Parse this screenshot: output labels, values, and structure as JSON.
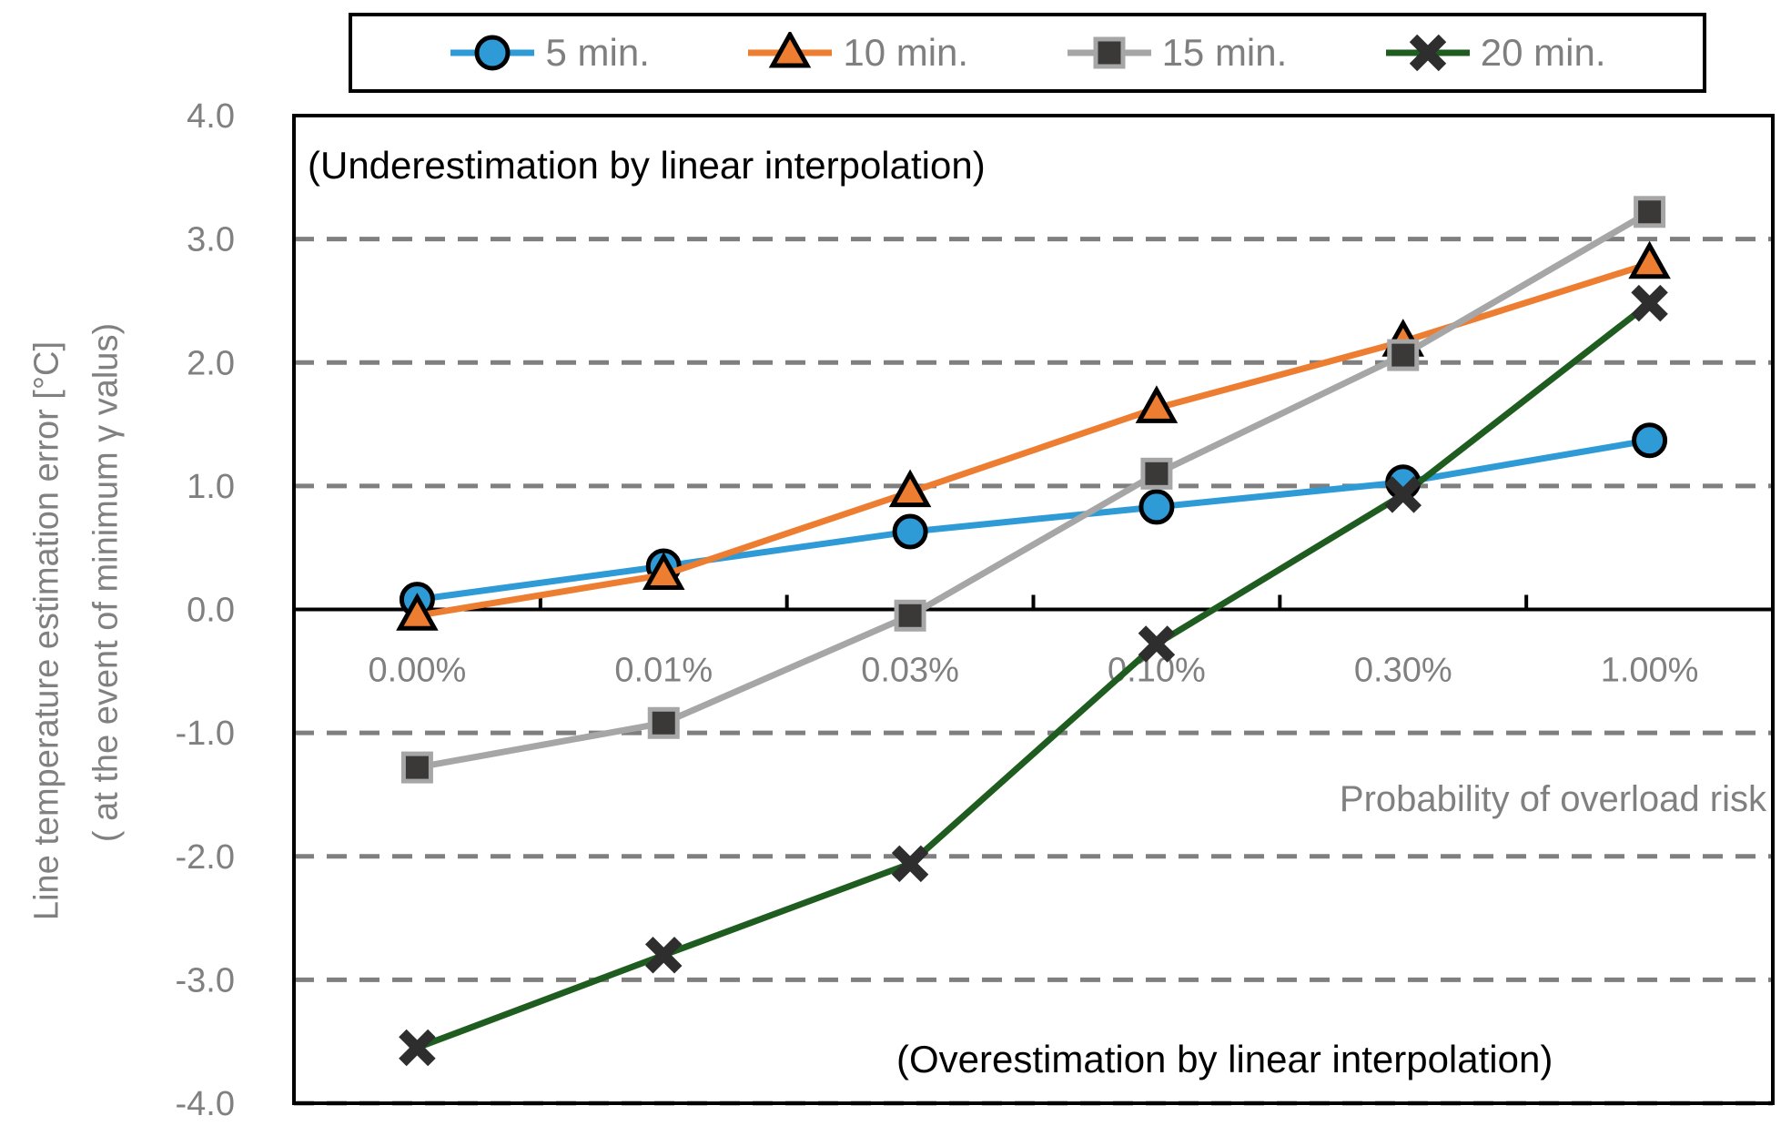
{
  "chart_data": {
    "type": "line",
    "title": "",
    "categories": [
      "0.00%",
      "0.01%",
      "0.03%",
      "0.10%",
      "0.30%",
      "1.00%"
    ],
    "series": [
      {
        "name": "5 min.",
        "marker": "circle",
        "color": "#2E9BD6",
        "marker_fill": "#2E9BD6",
        "marker_stroke": "#000000",
        "values": [
          0.08,
          0.35,
          0.63,
          0.83,
          1.03,
          1.37
        ]
      },
      {
        "name": "10 min.",
        "marker": "triangle",
        "color": "#ED7D31",
        "marker_fill": "#ED7D31",
        "marker_stroke": "#000000",
        "values": [
          -0.05,
          0.28,
          0.95,
          1.63,
          2.17,
          2.8
        ]
      },
      {
        "name": "15 min.",
        "marker": "square",
        "color": "#A6A6A6",
        "marker_fill": "#3B3838",
        "marker_stroke": "#A6A6A6",
        "values": [
          -1.28,
          -0.92,
          -0.05,
          1.1,
          2.06,
          3.22
        ]
      },
      {
        "name": "20 min.",
        "marker": "x",
        "color": "#1F5C1F",
        "marker_fill": "#2E2E2E",
        "marker_stroke": "#2E2E2E",
        "values": [
          -3.55,
          -2.8,
          -2.06,
          -0.28,
          0.93,
          2.48
        ]
      }
    ],
    "xlabel": "Probability of overload risk",
    "ylabel_line1": "Line temperature estimation error  [°C]",
    "ylabel_line2": "( at the event of minimum γ valus)",
    "ylim": [
      -4.0,
      4.0
    ],
    "ytick_step": 1.0,
    "ytick_labels": [
      "4.0",
      "3.0",
      "2.0",
      "1.0",
      "0.0",
      "-1.0",
      "-2.0",
      "-3.0",
      "-4.0"
    ],
    "grid": "horizontal dashed",
    "legend_position": "top",
    "annotations": {
      "top": "(Underestimation by linear interpolation)",
      "bottom": "(Overestimation by linear interpolation)"
    },
    "colors": {
      "axis": "#000000",
      "grid": "#7F7F7F",
      "tick_text": "#808080",
      "legend_text": "#7F7F7F"
    }
  }
}
